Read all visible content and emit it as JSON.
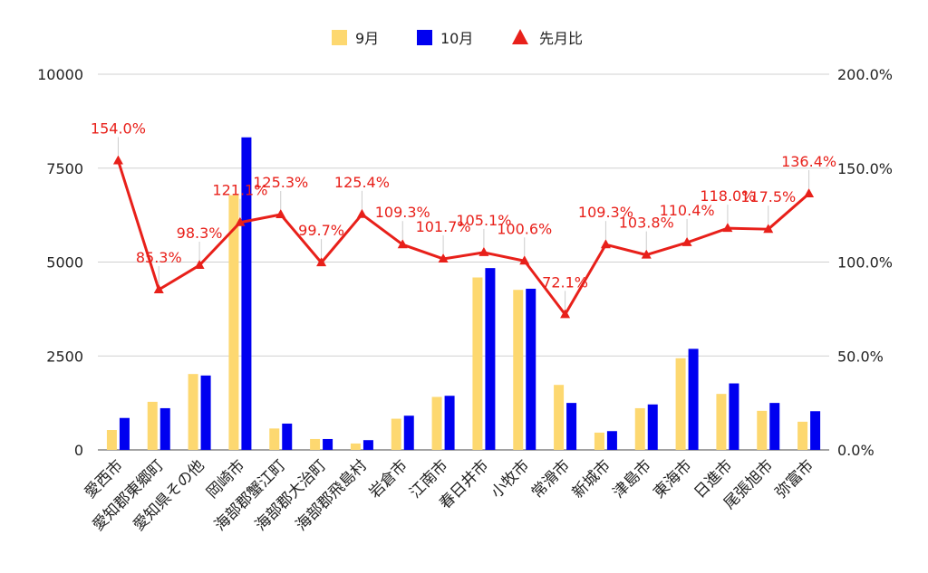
{
  "chart_data": {
    "type": "bar",
    "categories": [
      "愛西市",
      "愛知郡東郷町",
      "愛知県その他",
      "岡崎市",
      "海部郡蟹江町",
      "海部郡大治町",
      "海部郡飛島村",
      "岩倉市",
      "江南市",
      "春日井市",
      "小牧市",
      "常滑市",
      "新城市",
      "津島市",
      "東海市",
      "日進市",
      "尾張旭市",
      "弥富市"
    ],
    "series": [
      {
        "name": "9月",
        "type": "bar",
        "axis": "left",
        "color": "#fdd870",
        "values": [
          530,
          1280,
          2020,
          6780,
          570,
          290,
          170,
          830,
          1410,
          4590,
          4260,
          1730,
          460,
          1110,
          2440,
          1490,
          1040,
          750
        ]
      },
      {
        "name": "10月",
        "type": "bar",
        "axis": "left",
        "color": "#0000f0",
        "values": [
          850,
          1110,
          1980,
          8320,
          700,
          290,
          260,
          910,
          1440,
          4840,
          4290,
          1250,
          500,
          1210,
          2690,
          1770,
          1250,
          1030
        ]
      },
      {
        "name": "先月比",
        "type": "line",
        "axis": "right",
        "color": "#e8201a",
        "values": [
          154.0,
          85.3,
          98.3,
          121.1,
          125.3,
          99.7,
          125.4,
          109.3,
          101.7,
          105.1,
          100.6,
          72.1,
          109.3,
          103.8,
          110.4,
          118.0,
          117.5,
          136.4
        ],
        "labels": [
          "154.0%",
          "85.3%",
          "98.3%",
          "121.1%",
          "125.3%",
          "99.7%",
          "125.4%",
          "109.3%",
          "101.7%",
          "105.1%",
          "100.6%",
          "72.1%",
          "109.3%",
          "103.8%",
          "110.4%",
          "118.0%",
          "117.5%",
          "136.4%"
        ]
      }
    ],
    "y_left": {
      "min": 0,
      "max": 10000,
      "ticks": [
        "0",
        "2500",
        "5000",
        "7500",
        "10000"
      ]
    },
    "y_right": {
      "min": 0,
      "max": 200,
      "ticks": [
        "0.0%",
        "50.0%",
        "100.0%",
        "150.0%",
        "200.0%"
      ]
    },
    "grid": true,
    "legend": "top"
  }
}
